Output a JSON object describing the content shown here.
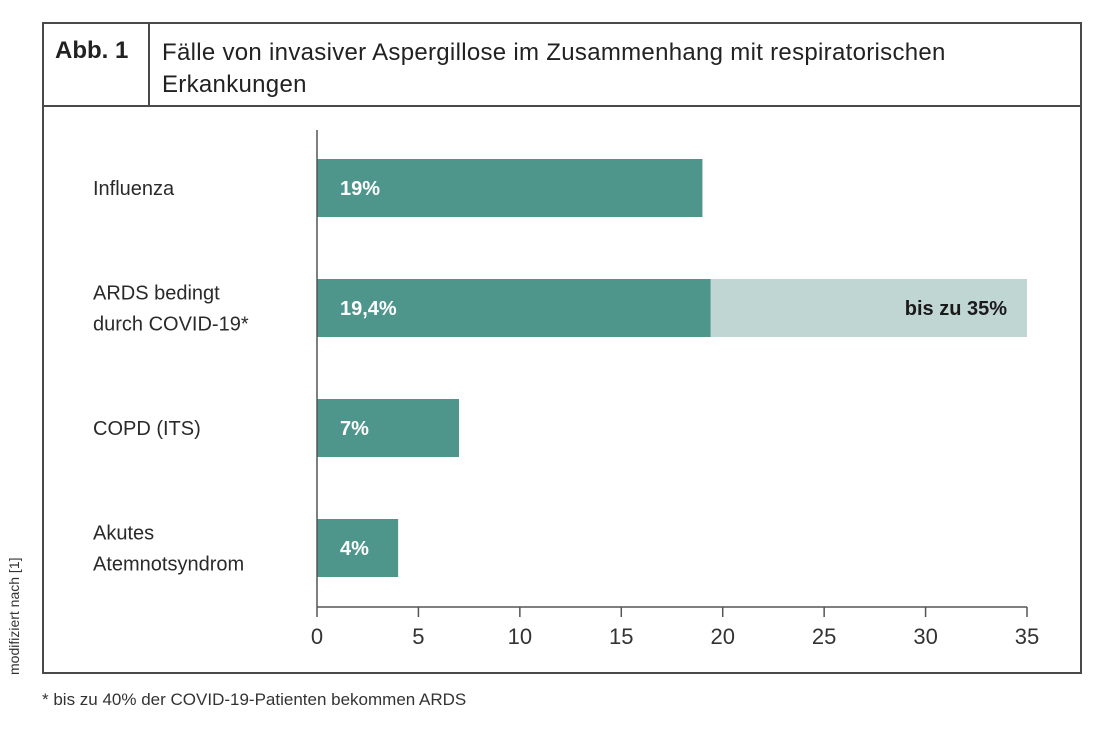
{
  "figure": {
    "number_label": "Abb. 1",
    "title": "Fälle von invasiver Aspergillose im Zusammenhang mit respiratorischen Erkankungen",
    "side_note": "modifiziert nach [1]",
    "footnote": "* bis zu 40% der COVID-19-Patienten bekommen ARDS"
  },
  "colors": {
    "primary_bar": "#4e958b",
    "extension_bar": "#c0d6d3",
    "axis": "#555555",
    "frame": "#4a4a4a"
  },
  "chart_data": {
    "type": "bar",
    "orientation": "horizontal",
    "title": "Fälle von invasiver Aspergillose im Zusammenhang mit respiratorischen Erkankungen",
    "xlabel": "",
    "ylabel": "",
    "xlim": [
      0,
      35
    ],
    "xticks": [
      0,
      5,
      10,
      15,
      20,
      25,
      30,
      35
    ],
    "grid": false,
    "categories": [
      [
        "Influenza"
      ],
      [
        "ARDS bedingt",
        "durch COVID-19*"
      ],
      [
        "COPD (ITS)"
      ],
      [
        "Akutes",
        "Atemnotsyndrom"
      ]
    ],
    "series": [
      {
        "name": "Fälle",
        "values": [
          19,
          19.4,
          7,
          4
        ],
        "labels": [
          "19%",
          "19,4%",
          "7%",
          "4%"
        ]
      },
      {
        "name": "bis zu",
        "values": [
          null,
          35,
          null,
          null
        ],
        "labels": [
          null,
          "bis zu 35%",
          null,
          null
        ]
      }
    ]
  }
}
